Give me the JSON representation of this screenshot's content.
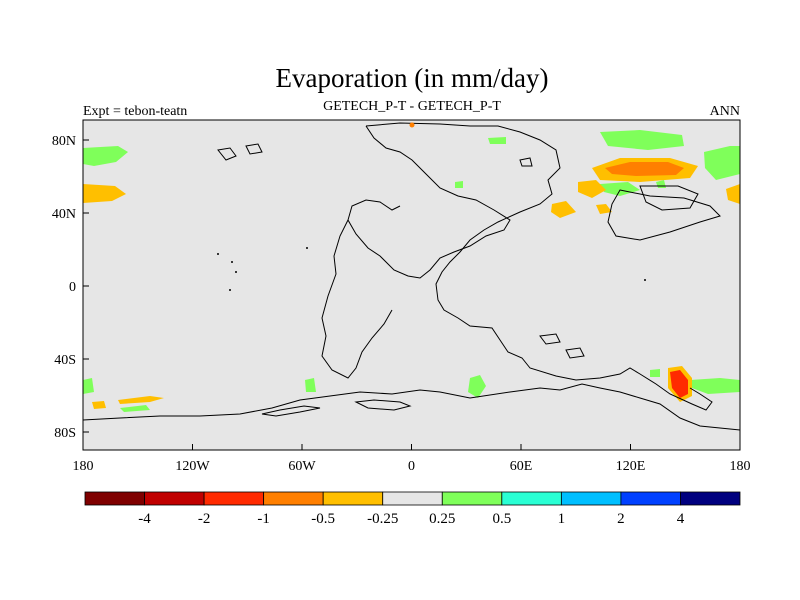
{
  "header": {
    "title": "Evaporation (in mm/day)",
    "left_label": "Expt = tebon-teatn",
    "center_label": "GETECH_P-T - GETECH_P-T",
    "right_label": "ANN"
  },
  "axes": {
    "x_ticks": [
      "180",
      "120W",
      "60W",
      "0",
      "60E",
      "120E",
      "180"
    ],
    "y_ticks": [
      "80N",
      "40N",
      "0",
      "40S",
      "80S"
    ]
  },
  "colorbar": {
    "labels": [
      "-4",
      "-2",
      "-1",
      "-0.5",
      "-0.25",
      "0.25",
      "0.5",
      "1",
      "2",
      "4"
    ],
    "colors": [
      "#7f0000",
      "#c00000",
      "#ff2a00",
      "#ff7f00",
      "#ffbf00",
      "#e6e6e6",
      "#7fff5a",
      "#2affd4",
      "#00bfff",
      "#0040ff",
      "#00007f"
    ]
  },
  "map": {
    "background_color": "#e6e6e6",
    "coastline_color": "#000000"
  }
}
